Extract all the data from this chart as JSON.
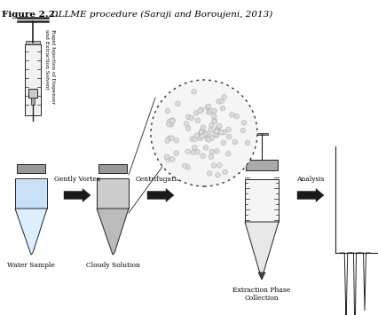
{
  "title_bold": "Figure 2.2.",
  "title_italic": " DLLME procedure (Saraji and Boroujeni, 2013)",
  "bg_color": "#ffffff",
  "labels": {
    "water_sample": "Water Sample",
    "cloudy_solution": "Cloudy Solution",
    "extraction_phase": "Extraction Phase\nCollection",
    "gently_vortex": "Gently Vortex",
    "centrifugation": "Centrifugation",
    "analysis": "Analysis",
    "rapid_injection": "Rapid Injection of Dispenser\nand Extraction Solvent"
  },
  "arrow_color": "#1a1a1a",
  "line_color": "#222222",
  "text_color": "#000000"
}
